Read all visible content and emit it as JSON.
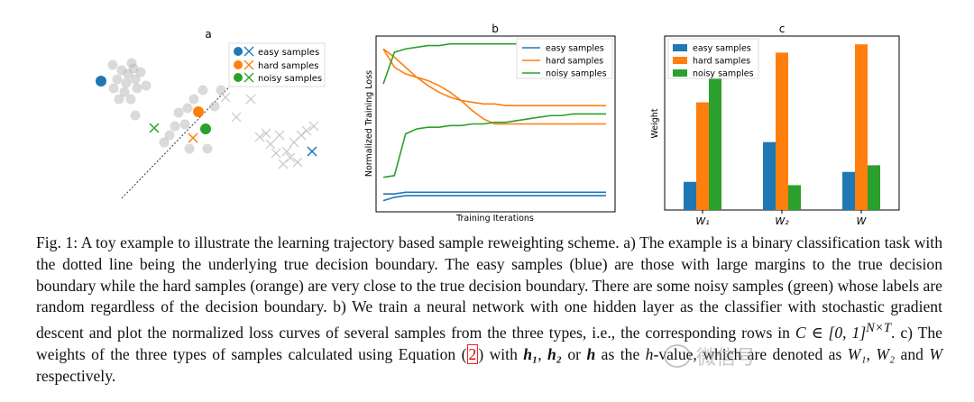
{
  "panel_a": {
    "label": "a",
    "legend": [
      "easy samples",
      "hard samples",
      "noisy samples"
    ]
  },
  "chart_data": [
    {
      "type": "line",
      "panel": "b",
      "title": "b",
      "xlabel": "Training Iterations",
      "ylabel": "Normalized Training Loss",
      "legend": [
        "easy samples",
        "hard samples",
        "noisy samples"
      ],
      "legend_placement": "top-right",
      "x": [
        0,
        5,
        10,
        15,
        20,
        25,
        30,
        35,
        40,
        45,
        50,
        55,
        60,
        65,
        70,
        75,
        80,
        85,
        90,
        95,
        100
      ],
      "series": [
        {
          "name": "easy samples",
          "color": "#1f77b4",
          "values": [
            0.08,
            0.08,
            0.09,
            0.09,
            0.09,
            0.09,
            0.09,
            0.09,
            0.09,
            0.09,
            0.09,
            0.09,
            0.09,
            0.09,
            0.09,
            0.09,
            0.09,
            0.09,
            0.09,
            0.09,
            0.09
          ]
        },
        {
          "name": "easy samples",
          "color": "#1f77b4",
          "values": [
            0.04,
            0.06,
            0.07,
            0.07,
            0.07,
            0.07,
            0.07,
            0.07,
            0.07,
            0.07,
            0.07,
            0.07,
            0.07,
            0.07,
            0.07,
            0.07,
            0.07,
            0.07,
            0.07,
            0.07,
            0.07
          ]
        },
        {
          "name": "hard samples",
          "color": "#ff7f0e",
          "values": [
            0.95,
            0.9,
            0.84,
            0.78,
            0.73,
            0.69,
            0.66,
            0.64,
            0.63,
            0.62,
            0.62,
            0.61,
            0.61,
            0.61,
            0.61,
            0.61,
            0.61,
            0.61,
            0.61,
            0.61,
            0.61
          ]
        },
        {
          "name": "hard samples",
          "color": "#ff7f0e",
          "values": [
            0.95,
            0.84,
            0.8,
            0.78,
            0.76,
            0.73,
            0.69,
            0.64,
            0.58,
            0.53,
            0.5,
            0.5,
            0.5,
            0.5,
            0.5,
            0.5,
            0.5,
            0.5,
            0.5,
            0.5,
            0.5
          ]
        },
        {
          "name": "noisy samples",
          "color": "#2ca02c",
          "values": [
            0.74,
            0.93,
            0.95,
            0.96,
            0.97,
            0.97,
            0.98,
            0.98,
            0.98,
            0.98,
            0.98,
            0.98,
            0.98,
            0.98,
            0.98,
            0.98,
            0.98,
            0.98,
            0.98,
            0.98,
            0.98
          ]
        },
        {
          "name": "noisy samples",
          "color": "#2ca02c",
          "values": [
            0.18,
            0.19,
            0.44,
            0.47,
            0.48,
            0.48,
            0.49,
            0.49,
            0.5,
            0.5,
            0.51,
            0.51,
            0.52,
            0.53,
            0.54,
            0.55,
            0.55,
            0.56,
            0.56,
            0.56,
            0.56
          ]
        }
      ]
    },
    {
      "type": "bar",
      "panel": "c",
      "title": "c",
      "xlabel": "",
      "ylabel": "Weight",
      "legend_placement": "top-left",
      "categories": [
        "W₁",
        "W₂",
        "W"
      ],
      "series": [
        {
          "name": "easy samples",
          "color": "#1f77b4",
          "values": [
            0.17,
            0.41,
            0.23
          ]
        },
        {
          "name": "hard samples",
          "color": "#ff7f0e",
          "values": [
            0.65,
            0.95,
            1.0
          ]
        },
        {
          "name": "noisy samples",
          "color": "#2ca02c",
          "values": [
            0.8,
            0.15,
            0.27
          ]
        }
      ],
      "ylim": [
        0,
        1.05
      ]
    }
  ],
  "caption": {
    "p1": "Fig. 1: A toy example to illustrate the learning trajectory based sample reweighting scheme. a) The example is a binary classification task with the dotted line being the underlying true decision boundary. The easy samples (blue) are those with large margins to the true decision boundary while the hard samples (orange) are very close to the true decision boundary. There are some noisy samples (green) whose labels are random regardless of the decision boundary. b) We train a neural network with one hidden layer as the classifier with stochastic gradient descent and plot the normalized loss curves of several samples from the three types, i.e., the corresponding rows in ",
    "math1": "C ∈ [0, 1]",
    "sup1": "N×T",
    "p2": ". c) The weights of the three types of samples calculated using Equation (",
    "ref": "2",
    "p3": ") with ",
    "h1": "h₁",
    "sep1": ", ",
    "h2": "h₂",
    "sep2": " or ",
    "h": "h",
    "p4": " as the ",
    "hval": "h",
    "p5": "-value, which are denoted as ",
    "w1": "W₁",
    "sep3": ", ",
    "w2": "W₂",
    "sep4": " and ",
    "w": "W",
    "p6": " respectively."
  },
  "watermark": {
    "text": "微信号"
  }
}
